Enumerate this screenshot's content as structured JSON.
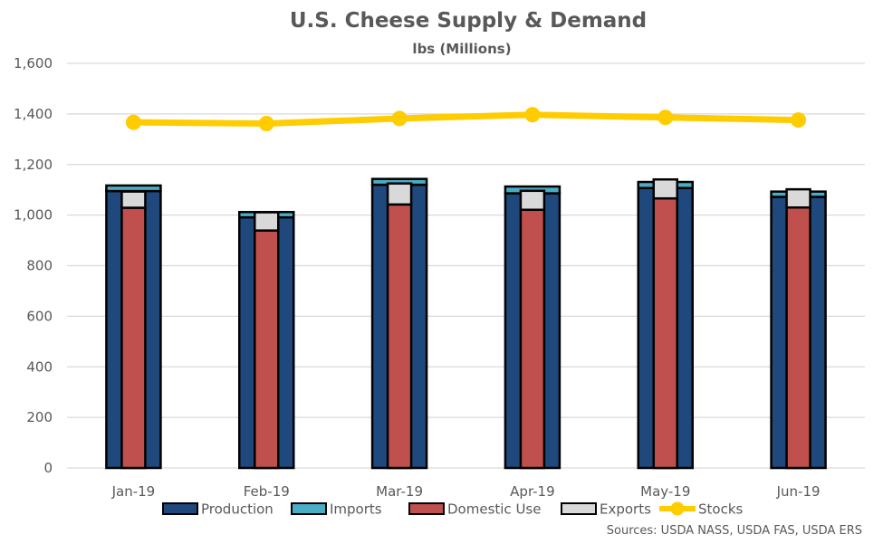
{
  "chart_data": {
    "type": "bar",
    "title": "U.S. Cheese Supply & Demand",
    "subtitle": "lbs (Millions)",
    "xlabel": "",
    "ylabel": "",
    "ylim": [
      0,
      1600
    ],
    "yticks": [
      0,
      200,
      400,
      600,
      800,
      1000,
      1200,
      1400,
      1600
    ],
    "ytick_labels": [
      "0",
      "200",
      "400",
      "600",
      "800",
      "1,000",
      "1,200",
      "1,400",
      "1,600"
    ],
    "grid": true,
    "legend_position": "bottom",
    "categories": [
      "Jan-19",
      "Feb-19",
      "Mar-19",
      "Apr-19",
      "May-19",
      "Jun-19"
    ],
    "series": [
      {
        "name": "Production",
        "kind": "stacked-bar-supply",
        "color": "#1F497D",
        "values": [
          1095,
          991,
          1120,
          1086,
          1107,
          1072
        ]
      },
      {
        "name": "Imports",
        "kind": "stacked-bar-supply",
        "color": "#4BACC6",
        "values": [
          22,
          21,
          23,
          27,
          24,
          21
        ]
      },
      {
        "name": "Domestic Use",
        "kind": "stacked-bar-demand",
        "color": "#C0504D",
        "values": [
          1029,
          939,
          1042,
          1021,
          1066,
          1030
        ]
      },
      {
        "name": "Exports",
        "kind": "stacked-bar-demand",
        "color": "#D9D9D9",
        "values": [
          64,
          72,
          83,
          75,
          75,
          72
        ]
      },
      {
        "name": "Stocks",
        "kind": "line",
        "color": "#FFCC00",
        "values": [
          1367,
          1362,
          1382,
          1397,
          1386,
          1376
        ]
      }
    ],
    "source": "Sources: USDA NASS, USDA FAS, USDA ERS"
  }
}
